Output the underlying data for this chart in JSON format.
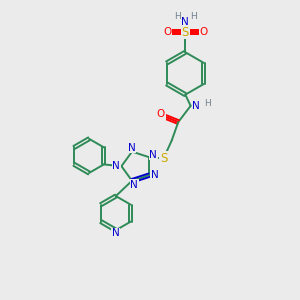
{
  "bg_color": "#ebebeb",
  "C": "#2e8b57",
  "N": "#0000cd",
  "O": "#ff0000",
  "S": "#ccaa00",
  "H": "#708090",
  "bond_color": "#2e8b57",
  "bond_lw": 1.4,
  "fs": 7.5
}
